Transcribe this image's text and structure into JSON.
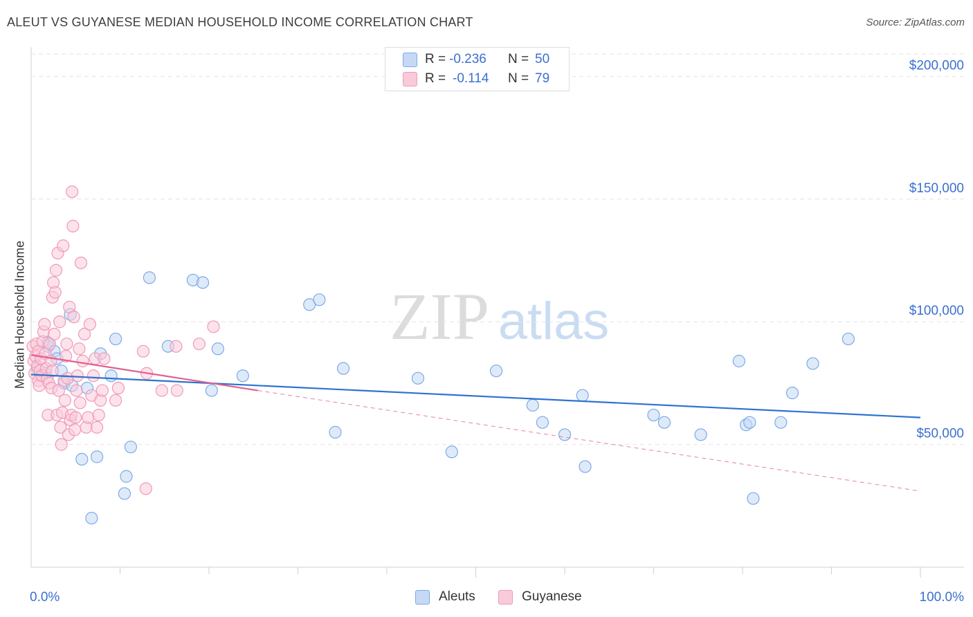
{
  "chart_data": {
    "type": "scatter",
    "title": "ALEUT VS GUYANESE MEDIAN HOUSEHOLD INCOME CORRELATION CHART",
    "source": "Source: ZipAtlas.com",
    "watermark": {
      "zip": "ZIP",
      "atlas": "atlas"
    },
    "xlabel": "",
    "ylabel": "Median Household Income",
    "xlim": [
      0,
      100
    ],
    "ylim": [
      0,
      210000
    ],
    "x_tick_labels": {
      "left": "0.0%",
      "right": "100.0%"
    },
    "y_ticks": [
      {
        "value": 50000,
        "label": "$50,000"
      },
      {
        "value": 100000,
        "label": "$100,000"
      },
      {
        "value": 150000,
        "label": "$150,000"
      },
      {
        "value": 200000,
        "label": "$200,000"
      }
    ],
    "grid": true,
    "legend_position": "bottom-center",
    "stats": [
      {
        "r_label": "R =",
        "r_value": "-0.236",
        "n_label": "N =",
        "n_value": "50"
      },
      {
        "r_label": "R =",
        "r_value": "-0.114",
        "n_label": "N =",
        "n_value": "79"
      }
    ],
    "series": [
      {
        "name": "Aleuts",
        "color": "#7aaae8",
        "fill": "#c5d9f4",
        "line_color": "#2f72d1",
        "trend": {
          "x0": 0,
          "y0": 78500,
          "x1": 100,
          "y1": 61000
        },
        "points": [
          [
            0.7,
            81000
          ],
          [
            1.6,
            79000
          ],
          [
            1.9,
            90000
          ],
          [
            1.9,
            91500
          ],
          [
            2.6,
            88000
          ],
          [
            2.9,
            85000
          ],
          [
            3.4,
            80000
          ],
          [
            3.7,
            75000
          ],
          [
            4.4,
            103000
          ],
          [
            4.6,
            74000
          ],
          [
            5.7,
            44000
          ],
          [
            6.3,
            73000
          ],
          [
            6.8,
            20000
          ],
          [
            7.4,
            45000
          ],
          [
            7.8,
            87000
          ],
          [
            9.0,
            78000
          ],
          [
            9.5,
            93000
          ],
          [
            10.5,
            30000
          ],
          [
            10.7,
            37000
          ],
          [
            11.2,
            49000
          ],
          [
            13.3,
            118000
          ],
          [
            15.4,
            90000
          ],
          [
            18.2,
            117000
          ],
          [
            19.3,
            116000
          ],
          [
            20.3,
            72000
          ],
          [
            21.0,
            89000
          ],
          [
            23.8,
            78000
          ],
          [
            31.3,
            107000
          ],
          [
            32.4,
            109000
          ],
          [
            34.2,
            55000
          ],
          [
            35.1,
            81000
          ],
          [
            43.5,
            77000
          ],
          [
            47.3,
            47000
          ],
          [
            52.3,
            80000
          ],
          [
            56.4,
            66000
          ],
          [
            57.5,
            59000
          ],
          [
            60.0,
            54000
          ],
          [
            62.0,
            70000
          ],
          [
            62.3,
            41000
          ],
          [
            70.0,
            62000
          ],
          [
            71.2,
            59000
          ],
          [
            75.3,
            54000
          ],
          [
            79.6,
            84000
          ],
          [
            80.4,
            58000
          ],
          [
            80.8,
            59000
          ],
          [
            81.2,
            28000
          ],
          [
            84.3,
            59000
          ],
          [
            85.6,
            71000
          ],
          [
            87.9,
            83000
          ],
          [
            91.9,
            93000
          ]
        ]
      },
      {
        "name": "Guyanese",
        "color": "#f09ab6",
        "fill": "#f9cada",
        "line_color": "#e0608c",
        "trend": {
          "x0": 0,
          "y0": 86500,
          "x1": 25.5,
          "y1": 72000
        },
        "trend_extended": {
          "x0": 25.5,
          "y0": 72000,
          "x1": 100,
          "y1": 31000
        },
        "points": [
          [
            0.2,
            90000
          ],
          [
            0.3,
            84000
          ],
          [
            0.4,
            79000
          ],
          [
            0.5,
            86000
          ],
          [
            0.6,
            91000
          ],
          [
            0.7,
            82000
          ],
          [
            0.8,
            76000
          ],
          [
            0.8,
            88000
          ],
          [
            0.9,
            74000
          ],
          [
            1.0,
            80000
          ],
          [
            1.1,
            85000
          ],
          [
            1.2,
            78000
          ],
          [
            1.3,
            92000
          ],
          [
            1.4,
            96000
          ],
          [
            1.5,
            99000
          ],
          [
            1.6,
            87000
          ],
          [
            1.7,
            81000
          ],
          [
            1.8,
            77000
          ],
          [
            1.9,
            62000
          ],
          [
            2.0,
            75000
          ],
          [
            2.1,
            91000
          ],
          [
            2.2,
            84000
          ],
          [
            2.3,
            73000
          ],
          [
            2.4,
            80000
          ],
          [
            2.4,
            110000
          ],
          [
            2.5,
            116000
          ],
          [
            2.6,
            95000
          ],
          [
            2.7,
            112000
          ],
          [
            2.8,
            121000
          ],
          [
            2.9,
            62000
          ],
          [
            3.0,
            128000
          ],
          [
            3.1,
            72000
          ],
          [
            3.2,
            100000
          ],
          [
            3.3,
            57000
          ],
          [
            3.4,
            50000
          ],
          [
            3.5,
            63000
          ],
          [
            3.6,
            131000
          ],
          [
            3.7,
            76000
          ],
          [
            3.8,
            68000
          ],
          [
            3.9,
            86000
          ],
          [
            4.0,
            91000
          ],
          [
            4.1,
            77000
          ],
          [
            4.2,
            54000
          ],
          [
            4.3,
            106000
          ],
          [
            4.4,
            60000
          ],
          [
            4.5,
            62000
          ],
          [
            4.6,
            153000
          ],
          [
            4.7,
            139000
          ],
          [
            4.8,
            102000
          ],
          [
            4.9,
            56000
          ],
          [
            5.0,
            61000
          ],
          [
            5.1,
            72000
          ],
          [
            5.2,
            78000
          ],
          [
            5.4,
            89000
          ],
          [
            5.5,
            67000
          ],
          [
            5.6,
            124000
          ],
          [
            5.8,
            84000
          ],
          [
            6.0,
            95000
          ],
          [
            6.2,
            57000
          ],
          [
            6.4,
            61000
          ],
          [
            6.6,
            99000
          ],
          [
            6.8,
            70000
          ],
          [
            7.0,
            78000
          ],
          [
            7.2,
            85000
          ],
          [
            7.4,
            57000
          ],
          [
            7.6,
            62000
          ],
          [
            7.8,
            68000
          ],
          [
            8.0,
            72000
          ],
          [
            8.2,
            85000
          ],
          [
            9.5,
            68000
          ],
          [
            9.8,
            73000
          ],
          [
            12.6,
            88000
          ],
          [
            12.9,
            32000
          ],
          [
            13.0,
            79000
          ],
          [
            14.7,
            72000
          ],
          [
            16.3,
            90000
          ],
          [
            16.4,
            72000
          ],
          [
            18.9,
            91000
          ],
          [
            20.5,
            98000
          ]
        ]
      }
    ]
  }
}
